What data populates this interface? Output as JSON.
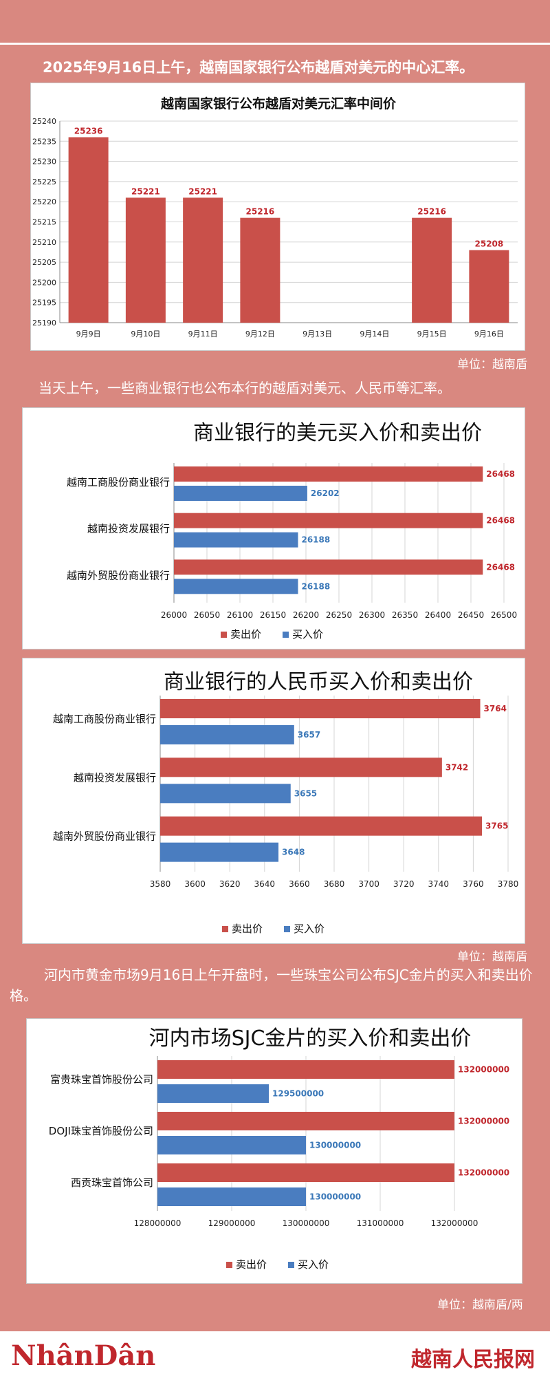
{
  "intro1": "2025年9月16日上午，越南国家银行公布越盾对美元的中心汇率。",
  "unit1": "单位：越南盾",
  "intro2": "当天上午，一些商业银行也公布本行的越盾对美元、人民币等汇率。",
  "unit2": "单位：越南盾",
  "intro3": "河内市黄金市场9月16日上午开盘时，一些珠宝公司公布SJC金片的买入和卖出价格。",
  "unit3": "单位：越南盾/两",
  "footer": {
    "logo_left": "NhânDân",
    "logo_right": "越南人民报网"
  },
  "colors": {
    "sell": "#c9504a",
    "buy": "#4a7dc0",
    "sell_label": "#c0272d",
    "buy_label": "#3b78b8"
  },
  "chart_data": [
    {
      "type": "bar",
      "title": "越南国家银行公布越盾对美元汇率中间价",
      "categories": [
        "9月9日",
        "9月10日",
        "9月11日",
        "9月12日",
        "9月13日",
        "9月14日",
        "9月15日",
        "9月16日"
      ],
      "values": [
        25236,
        25221,
        25221,
        25216,
        null,
        null,
        25216,
        25208
      ],
      "ylim": [
        25190,
        25240
      ],
      "yticks": [
        25190,
        25195,
        25200,
        25205,
        25210,
        25215,
        25220,
        25225,
        25230,
        25235,
        25240
      ],
      "grid": true
    },
    {
      "type": "bar",
      "orientation": "horizontal",
      "title": "商业银行的美元买入价和卖出价",
      "categories": [
        "越南工商股份商业银行",
        "越南投资发展银行",
        "越南外贸股份商业银行"
      ],
      "series": [
        {
          "name": "卖出价",
          "values": [
            26468,
            26468,
            26468
          ]
        },
        {
          "name": "买入价",
          "values": [
            26202,
            26188,
            26188
          ]
        }
      ],
      "xlim": [
        26000,
        26500
      ],
      "xticks": [
        26000,
        26050,
        26100,
        26150,
        26200,
        26250,
        26300,
        26350,
        26400,
        26450,
        26500
      ],
      "legend": "bottom",
      "grid": true
    },
    {
      "type": "bar",
      "orientation": "horizontal",
      "title": "商业银行的人民币买入价和卖出价",
      "categories": [
        "越南工商股份商业银行",
        "越南投资发展银行",
        "越南外贸股份商业银行"
      ],
      "series": [
        {
          "name": "卖出价",
          "values": [
            3764,
            3742,
            3765
          ]
        },
        {
          "name": "买入价",
          "values": [
            3657,
            3655,
            3648
          ]
        }
      ],
      "xlim": [
        3580,
        3780
      ],
      "xticks": [
        3580,
        3600,
        3620,
        3640,
        3660,
        3680,
        3700,
        3720,
        3740,
        3760,
        3780
      ],
      "legend": "bottom",
      "grid": true
    },
    {
      "type": "bar",
      "orientation": "horizontal",
      "title": "河内市场SJC金片的买入价和卖出价",
      "categories": [
        "富贵珠宝首饰股份公司",
        "DOJI珠宝首饰股份公司",
        "西贡珠宝首饰公司"
      ],
      "series": [
        {
          "name": "卖出价",
          "values": [
            132000000,
            132000000,
            132000000
          ]
        },
        {
          "name": "买入价",
          "values": [
            129500000,
            130000000,
            130000000
          ]
        }
      ],
      "xlim": [
        128000000,
        132000000
      ],
      "xticks": [
        128000000,
        129000000,
        130000000,
        131000000,
        132000000
      ],
      "legend": "bottom",
      "grid": true
    }
  ]
}
